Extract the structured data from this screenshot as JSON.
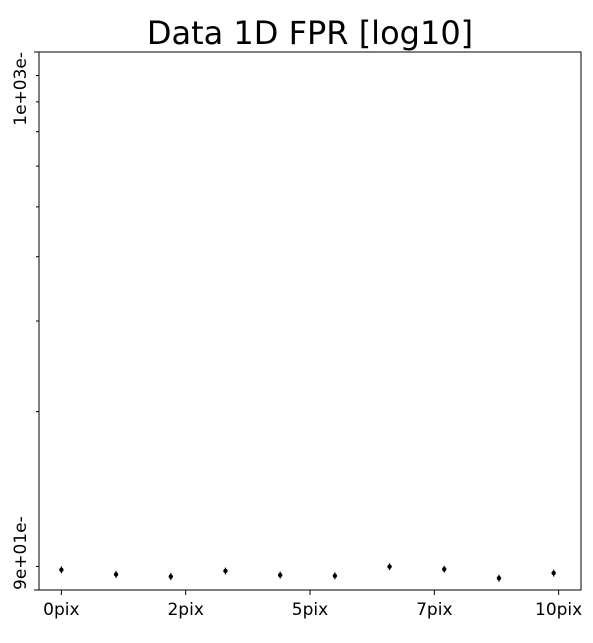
{
  "chart_data": {
    "type": "scatter",
    "title": "Data 1D FPR [log10]",
    "xlabel": "",
    "ylabel": "",
    "y_scale": "log",
    "ylim": [
      90,
      1000
    ],
    "xlim": [
      -0.45,
      10.45
    ],
    "x_ticks": [
      {
        "value": 0,
        "label": "0pix"
      },
      {
        "value": 2.5,
        "label": "2pix"
      },
      {
        "value": 5,
        "label": "5pix"
      },
      {
        "value": 7.5,
        "label": "7pix"
      },
      {
        "value": 10,
        "label": "10pix"
      }
    ],
    "y_ticks": [
      {
        "value": 90,
        "label": "9e+01e-"
      },
      {
        "value": 1000,
        "label": "1e+03e-"
      }
    ],
    "y_minor_ticks": [
      100,
      200,
      300,
      400,
      500,
      600,
      700,
      800,
      900
    ],
    "grid": false,
    "series": [
      {
        "x": [
          0,
          1.1,
          2.2,
          3.3,
          4.4,
          5.5,
          6.6,
          7.7,
          8.8,
          9.9
        ],
        "y": [
          98.5,
          96.5,
          95.6,
          98.0,
          96.2,
          95.9,
          99.9,
          98.8,
          94.9,
          97.1
        ],
        "yerr": [
          1.5,
          1.5,
          1.5,
          1.5,
          1.5,
          1.5,
          1.5,
          1.5,
          1.5,
          1.5
        ],
        "marker_color": "#000000"
      }
    ]
  }
}
